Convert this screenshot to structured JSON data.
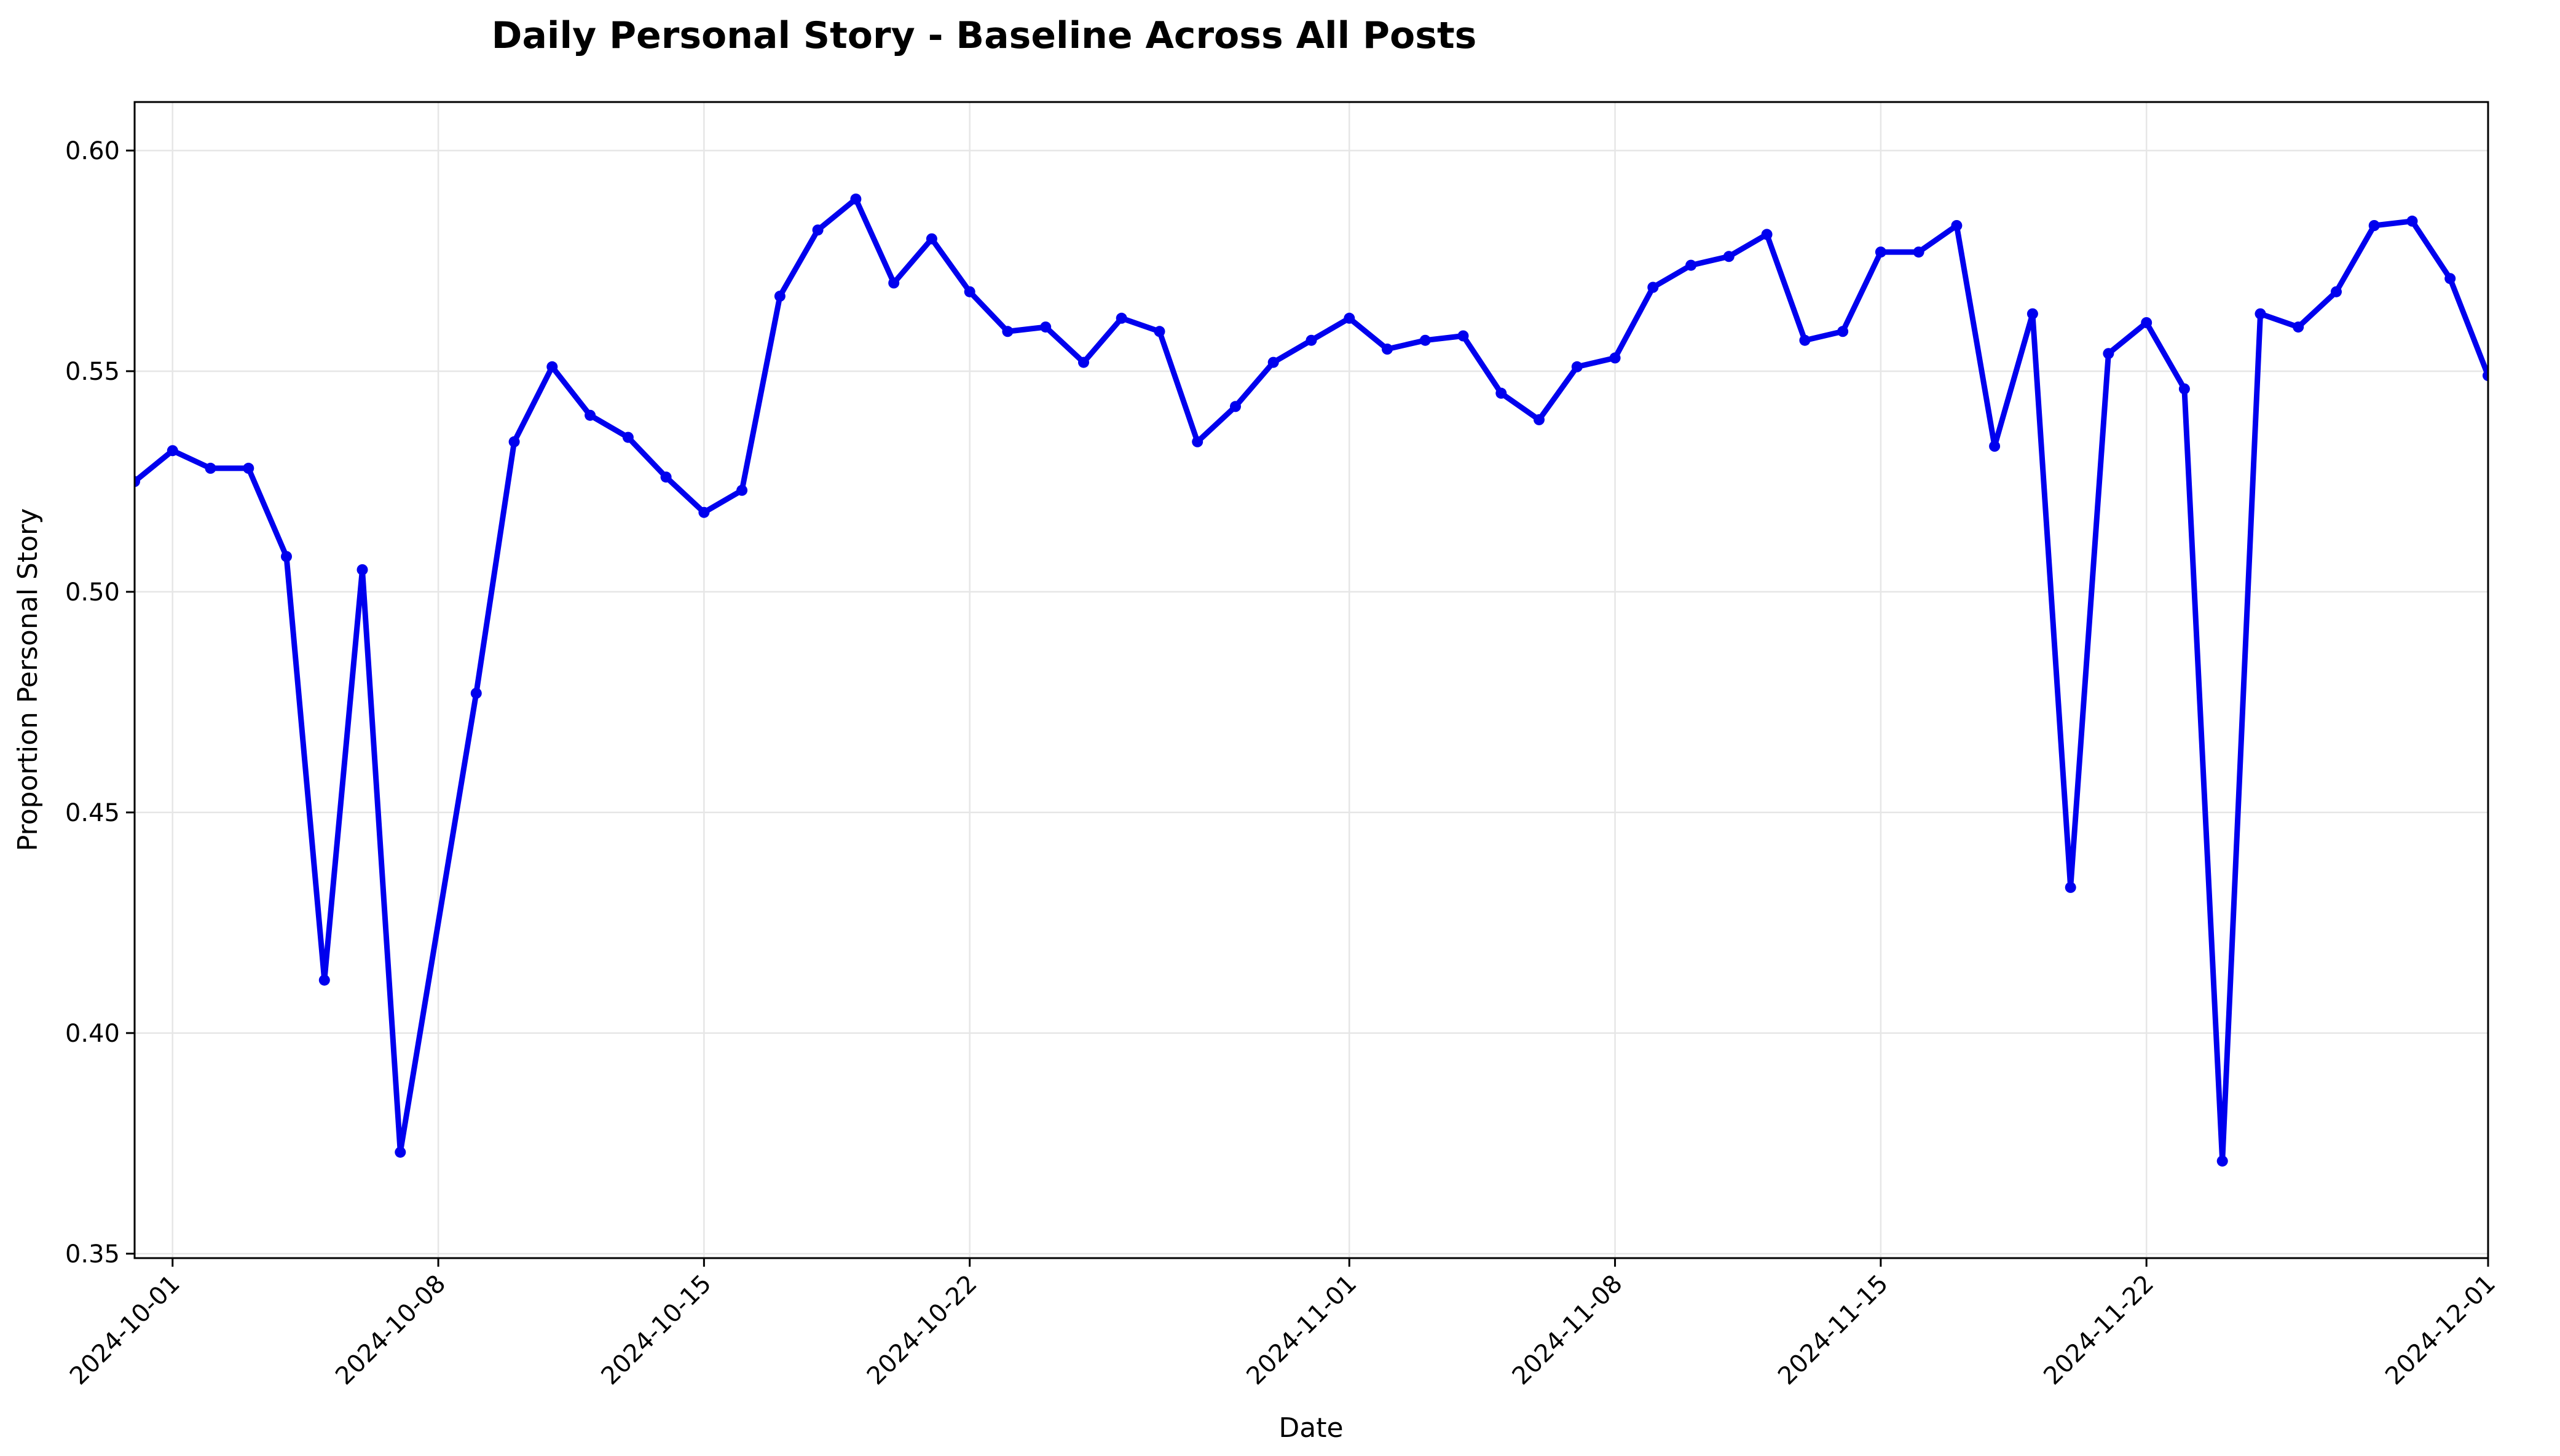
{
  "chart_data": {
    "type": "line",
    "title": "Daily Personal Story - Baseline Across All Posts",
    "xlabel": "Date",
    "ylabel": "Proportion Personal Story",
    "xlim": [
      "2024-09-30",
      "2024-12-01"
    ],
    "ylim": [
      0.349,
      0.611
    ],
    "grid": true,
    "x_ticks": [
      "2024-10-01",
      "2024-10-08",
      "2024-10-15",
      "2024-10-22",
      "2024-11-01",
      "2024-11-08",
      "2024-11-15",
      "2024-11-22",
      "2024-12-01"
    ],
    "y_ticks": [
      "0.35",
      "0.40",
      "0.45",
      "0.50",
      "0.55",
      "0.60"
    ],
    "series": [
      {
        "color": "#0000ee",
        "marker": "circle",
        "x": [
          "2024-09-30",
          "2024-10-01",
          "2024-10-02",
          "2024-10-03",
          "2024-10-04",
          "2024-10-05",
          "2024-10-06",
          "2024-10-07",
          "2024-10-09",
          "2024-10-10",
          "2024-10-11",
          "2024-10-12",
          "2024-10-13",
          "2024-10-14",
          "2024-10-15",
          "2024-10-16",
          "2024-10-17",
          "2024-10-18",
          "2024-10-19",
          "2024-10-20",
          "2024-10-21",
          "2024-10-22",
          "2024-10-23",
          "2024-10-24",
          "2024-10-25",
          "2024-10-26",
          "2024-10-27",
          "2024-10-28",
          "2024-10-29",
          "2024-10-30",
          "2024-10-31",
          "2024-11-01",
          "2024-11-02",
          "2024-11-03",
          "2024-11-04",
          "2024-11-05",
          "2024-11-06",
          "2024-11-07",
          "2024-11-08",
          "2024-11-09",
          "2024-11-10",
          "2024-11-11",
          "2024-11-12",
          "2024-11-13",
          "2024-11-14",
          "2024-11-15",
          "2024-11-16",
          "2024-11-17",
          "2024-11-18",
          "2024-11-19",
          "2024-11-20",
          "2024-11-21",
          "2024-11-22",
          "2024-11-23",
          "2024-11-24",
          "2024-11-25",
          "2024-11-26",
          "2024-11-27",
          "2024-11-28",
          "2024-11-29",
          "2024-11-30",
          "2024-12-01"
        ],
        "values": [
          0.525,
          0.532,
          0.528,
          0.528,
          0.508,
          0.412,
          0.505,
          0.373,
          0.477,
          0.534,
          0.551,
          0.54,
          0.535,
          0.526,
          0.518,
          0.523,
          0.567,
          0.582,
          0.589,
          0.57,
          0.58,
          0.568,
          0.559,
          0.56,
          0.552,
          0.562,
          0.559,
          0.534,
          0.542,
          0.552,
          0.557,
          0.562,
          0.555,
          0.557,
          0.558,
          0.545,
          0.539,
          0.551,
          0.553,
          0.569,
          0.574,
          0.576,
          0.581,
          0.557,
          0.559,
          0.577,
          0.577,
          0.583,
          0.533,
          0.563,
          0.433,
          0.554,
          0.561,
          0.546,
          0.371,
          0.563,
          0.56,
          0.568,
          0.583,
          0.584,
          0.571,
          0.549
        ]
      }
    ]
  }
}
